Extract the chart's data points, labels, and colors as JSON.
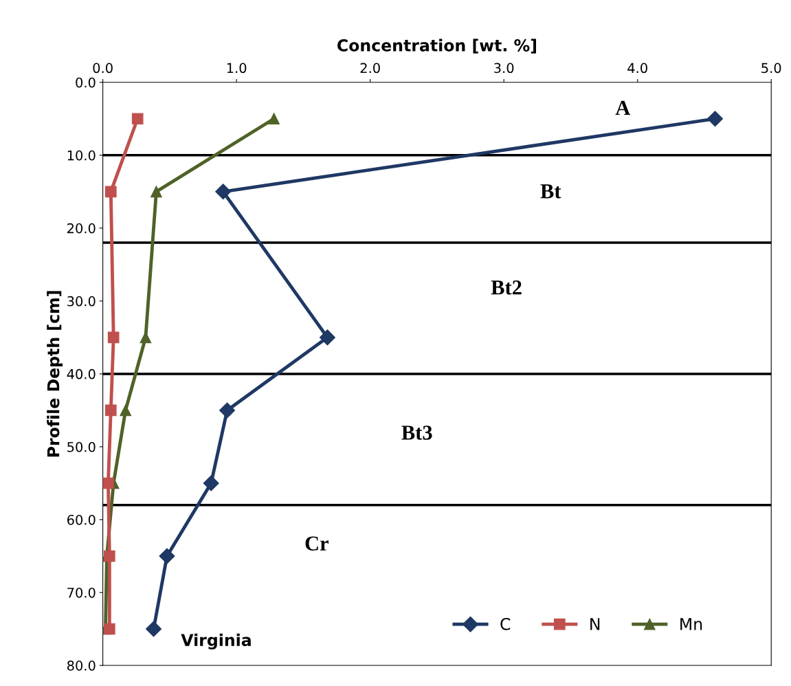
{
  "chart_data": {
    "type": "line",
    "xlabel": "Concentration [wt. %]",
    "ylabel": "Profile Depth [cm]",
    "xlim": [
      0,
      5
    ],
    "xticks": [
      {
        "value": 0,
        "label": "0.0"
      },
      {
        "value": 1,
        "label": "1.0"
      },
      {
        "value": 2,
        "label": "2.0"
      },
      {
        "value": 3,
        "label": "3.0"
      },
      {
        "value": 4,
        "label": "4.0"
      },
      {
        "value": 5,
        "label": "5.0"
      }
    ],
    "ylim": [
      80,
      0
    ],
    "yticks": [
      {
        "value": 0,
        "label": "0.0"
      },
      {
        "value": 10,
        "label": "10.0"
      },
      {
        "value": 20,
        "label": "20.0"
      },
      {
        "value": 30,
        "label": "30.0"
      },
      {
        "value": 40,
        "label": "40.0"
      },
      {
        "value": 50,
        "label": "50.0"
      },
      {
        "value": 60,
        "label": "60.0"
      },
      {
        "value": 70,
        "label": "70.0"
      },
      {
        "value": 80,
        "label": "80.0"
      }
    ],
    "series": [
      {
        "name": "C",
        "color": "#1f3864",
        "marker": "diamond",
        "x": [
          4.58,
          0.9,
          1.68,
          0.93,
          0.81,
          0.48,
          0.38
        ],
        "values": [
          5,
          15,
          35,
          45,
          55,
          65,
          75
        ]
      },
      {
        "name": "N",
        "color": "#c0504d",
        "marker": "square",
        "x": [
          0.26,
          0.06,
          0.08,
          0.06,
          0.04,
          0.05,
          0.05
        ],
        "values": [
          5,
          15,
          35,
          45,
          55,
          65,
          75
        ]
      },
      {
        "name": "Mn",
        "color": "#4f6228",
        "marker": "triangle",
        "x": [
          1.28,
          0.4,
          0.32,
          0.17,
          0.08,
          0.03,
          0.02
        ],
        "values": [
          5,
          15,
          35,
          45,
          55,
          65,
          75
        ]
      }
    ],
    "ref_lines": [
      {
        "axis": "y",
        "value": 10,
        "color": "#000000"
      },
      {
        "axis": "y",
        "value": 22,
        "color": "#000000"
      },
      {
        "axis": "y",
        "value": 40,
        "color": "#000000"
      },
      {
        "axis": "y",
        "value": 58,
        "color": "#000000"
      }
    ],
    "annotations": [
      "A",
      "Bt",
      "Bt2",
      "Bt3",
      "Cr",
      "Virginia"
    ],
    "grid": false,
    "legend": "bottom right",
    "line_style": "solid"
  }
}
